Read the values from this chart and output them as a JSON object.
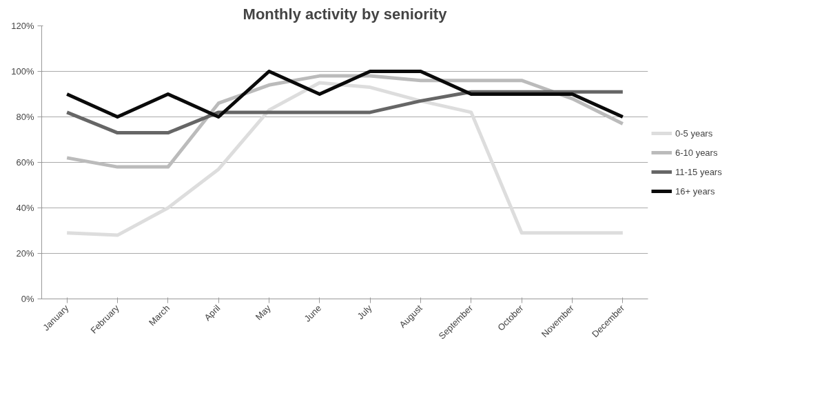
{
  "chart_data": {
    "type": "line",
    "title": "Monthly activity by seniority",
    "categories": [
      "January",
      "February",
      "March",
      "April",
      "May",
      "June",
      "July",
      "August",
      "September",
      "October",
      "November",
      "December"
    ],
    "series": [
      {
        "name": "0-5 years",
        "color": "#dddddd",
        "values": [
          29,
          28,
          40,
          57,
          83,
          95,
          93,
          87,
          82,
          29,
          29,
          29
        ]
      },
      {
        "name": "6-10 years",
        "color": "#bbbbbb",
        "values": [
          62,
          58,
          58,
          86,
          94,
          98,
          98,
          96,
          96,
          96,
          88,
          77
        ]
      },
      {
        "name": "11-15 years",
        "color": "#666666",
        "values": [
          82,
          73,
          73,
          82,
          82,
          82,
          82,
          87,
          91,
          91,
          91,
          91
        ]
      },
      {
        "name": "16+ years",
        "color": "#0a0a0a",
        "values": [
          90,
          80,
          90,
          80,
          100,
          90,
          100,
          100,
          90,
          90,
          90,
          80
        ]
      }
    ],
    "ylim": [
      0,
      120
    ],
    "yticks": [
      {
        "value": 0,
        "label": "0%"
      },
      {
        "value": 20,
        "label": "20%"
      },
      {
        "value": 40,
        "label": "40%"
      },
      {
        "value": 60,
        "label": "60%"
      },
      {
        "value": 80,
        "label": "80%"
      },
      {
        "value": 100,
        "label": "100%"
      },
      {
        "value": 120,
        "label": "120%"
      }
    ],
    "grid": "y",
    "legend": "right",
    "marker": "none",
    "line_style": "solid"
  }
}
